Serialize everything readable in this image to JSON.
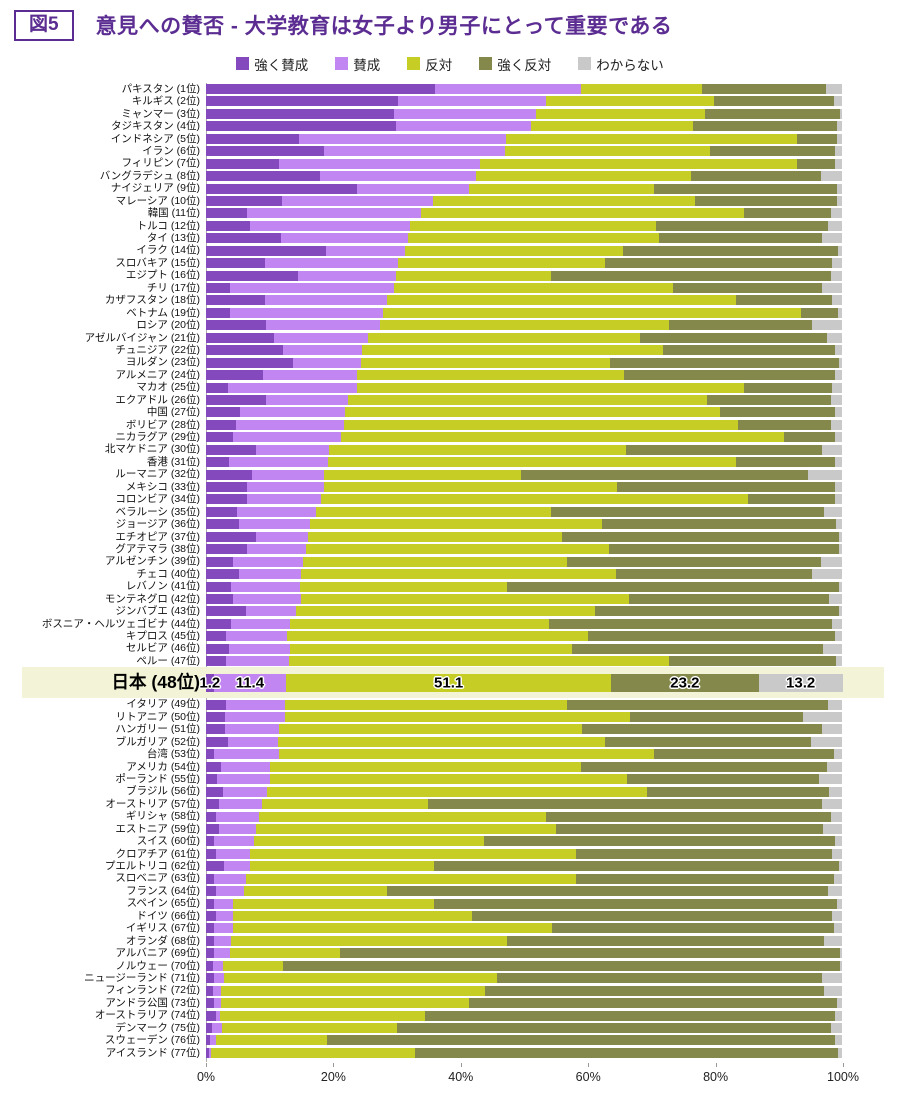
{
  "figure": {
    "label": "図5",
    "title": "意見への賛否 - 大学教育は女子より男子にとって重要である"
  },
  "legend": [
    {
      "key": "strongly-agree",
      "label": "強く賛成",
      "color": "#8549BE"
    },
    {
      "key": "agree",
      "label": "賛成",
      "color": "#C286F3"
    },
    {
      "key": "oppose",
      "label": "反対",
      "color": "#C6CE25"
    },
    {
      "key": "strongly-oppose",
      "label": "強く反対",
      "color": "#84884B"
    },
    {
      "key": "dont-know",
      "label": "わからない",
      "color": "#C9C9C9"
    }
  ],
  "chart_data": {
    "type": "bar",
    "stacked": true,
    "orientation": "horizontal",
    "title": "意見への賛否 - 大学教育は女子より男子にとって重要である",
    "series_names": [
      "強く賛成",
      "賛成",
      "反対",
      "強く反対",
      "わからない"
    ],
    "series_keys": [
      "strongly-agree",
      "agree",
      "oppose",
      "strongly-oppose",
      "dont-know"
    ],
    "colors": [
      "#8549BE",
      "#C286F3",
      "#C6CE25",
      "#84884B",
      "#C9C9C9"
    ],
    "x_ticks": [
      "0%",
      "20%",
      "40%",
      "60%",
      "80%",
      "100%"
    ],
    "x_range": [
      0,
      100
    ],
    "unit": "%",
    "highlighted_row": "日本 (48位)",
    "rows": [
      {
        "label": "パキスタン (1位)",
        "values": [
          36.0,
          23.0,
          19.0,
          19.5,
          2.5
        ]
      },
      {
        "label": "キルギス (2位)",
        "values": [
          30.2,
          23.2,
          26.5,
          18.8,
          1.3
        ]
      },
      {
        "label": "ミャンマー (3位)",
        "values": [
          29.5,
          22.4,
          26.6,
          21.2,
          0.3
        ]
      },
      {
        "label": "タジキスタン (4位)",
        "values": [
          29.8,
          21.3,
          25.4,
          22.7,
          0.8
        ]
      },
      {
        "label": "インドネシア (5位)",
        "values": [
          14.6,
          32.6,
          45.7,
          6.3,
          0.8
        ]
      },
      {
        "label": "イラン (6位)",
        "values": [
          18.5,
          28.5,
          32.3,
          19.6,
          1.1
        ]
      },
      {
        "label": "フィリピン (7位)",
        "values": [
          11.4,
          31.7,
          49.8,
          6.0,
          1.1
        ]
      },
      {
        "label": "バングラデシュ (8位)",
        "values": [
          18.0,
          24.5,
          33.7,
          20.5,
          3.3
        ]
      },
      {
        "label": "ナイジェリア (9位)",
        "values": [
          23.7,
          17.7,
          29.1,
          28.7,
          0.8
        ]
      },
      {
        "label": "マレーシア (10位)",
        "values": [
          11.9,
          23.8,
          41.2,
          22.3,
          0.8
        ]
      },
      {
        "label": "韓国 (11位)",
        "values": [
          6.5,
          27.3,
          50.8,
          13.6,
          1.8
        ]
      },
      {
        "label": "トルコ (12位)",
        "values": [
          6.9,
          25.1,
          38.7,
          27.1,
          2.2
        ]
      },
      {
        "label": "タイ (13位)",
        "values": [
          11.8,
          20.0,
          39.5,
          25.6,
          3.1
        ]
      },
      {
        "label": "イラク (14位)",
        "values": [
          18.8,
          12.5,
          34.2,
          33.9,
          0.6
        ]
      },
      {
        "label": "スロバキア (15位)",
        "values": [
          9.2,
          21.0,
          32.6,
          35.7,
          1.5
        ]
      },
      {
        "label": "エジプト (16位)",
        "values": [
          14.5,
          15.3,
          24.5,
          43.9,
          1.8
        ]
      },
      {
        "label": "チリ (17位)",
        "values": [
          3.8,
          25.7,
          43.9,
          23.5,
          3.1
        ]
      },
      {
        "label": "カザフスタン (18位)",
        "values": [
          9.2,
          19.2,
          54.9,
          15.2,
          1.5
        ]
      },
      {
        "label": "ベトナム (19位)",
        "values": [
          3.8,
          24.0,
          65.8,
          5.8,
          0.6
        ]
      },
      {
        "label": "ロシア (20位)",
        "values": [
          9.4,
          17.9,
          45.5,
          22.5,
          4.7
        ]
      },
      {
        "label": "アゼルバイジャン (21位)",
        "values": [
          10.7,
          14.8,
          42.8,
          29.3,
          2.4
        ]
      },
      {
        "label": "チュニジア (22位)",
        "values": [
          12.1,
          12.5,
          47.2,
          27.1,
          1.1
        ]
      },
      {
        "label": "ヨルダン (23位)",
        "values": [
          13.7,
          10.7,
          39.2,
          36.0,
          0.4
        ]
      },
      {
        "label": "アルメニア (24位)",
        "values": [
          9.0,
          14.7,
          42.1,
          33.1,
          1.1
        ]
      },
      {
        "label": "マカオ (25位)",
        "values": [
          3.4,
          20.3,
          60.9,
          13.9,
          1.5
        ]
      },
      {
        "label": "エクアドル (26位)",
        "values": [
          9.4,
          13.0,
          56.4,
          19.4,
          1.8
        ]
      },
      {
        "label": "中国 (27位)",
        "values": [
          5.4,
          16.4,
          59.0,
          18.1,
          1.1
        ]
      },
      {
        "label": "ボリビア (28位)",
        "values": [
          4.7,
          17.0,
          62.0,
          14.6,
          1.7
        ]
      },
      {
        "label": "ニカラグア (29位)",
        "values": [
          4.3,
          16.9,
          69.7,
          8.0,
          1.1
        ]
      },
      {
        "label": "北マケドニア (30位)",
        "values": [
          7.9,
          11.5,
          46.7,
          30.8,
          3.1
        ]
      },
      {
        "label": "香港 (31位)",
        "values": [
          3.6,
          15.6,
          64.1,
          15.6,
          1.1
        ]
      },
      {
        "label": "ルーマニア (32位)",
        "values": [
          7.3,
          11.3,
          30.9,
          45.2,
          5.3
        ]
      },
      {
        "label": "メキシコ (33位)",
        "values": [
          6.5,
          12.1,
          46.0,
          34.3,
          1.1
        ]
      },
      {
        "label": "コロンビア (34位)",
        "values": [
          6.5,
          11.6,
          67.1,
          13.7,
          1.1
        ]
      },
      {
        "label": "ベラルーシ (35位)",
        "values": [
          4.9,
          12.4,
          36.9,
          42.9,
          2.9
        ]
      },
      {
        "label": "ジョージア (36位)",
        "values": [
          5.2,
          11.2,
          45.8,
          36.9,
          0.9
        ]
      },
      {
        "label": "エチオピア (37位)",
        "values": [
          7.8,
          8.3,
          39.9,
          43.6,
          0.4
        ]
      },
      {
        "label": "グアテマラ (38位)",
        "values": [
          6.5,
          9.2,
          47.7,
          36.2,
          0.4
        ]
      },
      {
        "label": "アルゼンチン (39位)",
        "values": [
          4.2,
          11.0,
          41.6,
          39.9,
          3.3
        ]
      },
      {
        "label": "チェコ (40位)",
        "values": [
          5.2,
          9.8,
          49.5,
          30.8,
          4.7
        ]
      },
      {
        "label": "レバノン (41位)",
        "values": [
          4.0,
          10.8,
          32.5,
          52.3,
          0.4
        ]
      },
      {
        "label": "モンテネグロ (42位)",
        "values": [
          4.2,
          10.8,
          51.5,
          31.5,
          2.0
        ]
      },
      {
        "label": "ジンバブエ (43位)",
        "values": [
          6.3,
          7.8,
          47.0,
          38.5,
          0.4
        ]
      },
      {
        "label": "ボスニア・ヘルツェゴビナ (44位)",
        "values": [
          4.0,
          9.2,
          40.8,
          44.5,
          1.5
        ]
      },
      {
        "label": "キプロス (45位)",
        "values": [
          3.1,
          9.7,
          47.2,
          38.9,
          1.1
        ]
      },
      {
        "label": "セルビア (46位)",
        "values": [
          3.6,
          9.6,
          44.4,
          39.4,
          3.0
        ]
      },
      {
        "label": "ペルー (47位)",
        "values": [
          3.1,
          9.9,
          59.8,
          26.3,
          0.9
        ]
      },
      {
        "label": "日本 (48位)",
        "values": [
          1.2,
          11.4,
          51.1,
          23.2,
          13.2
        ],
        "highlight": true,
        "show_values": true
      },
      {
        "label": "イタリア (49位)",
        "values": [
          3.1,
          9.4,
          44.3,
          41.0,
          2.2
        ]
      },
      {
        "label": "リトアニア (50位)",
        "values": [
          3.0,
          9.5,
          54.2,
          27.1,
          6.2
        ]
      },
      {
        "label": "ハンガリー (51位)",
        "values": [
          3.0,
          8.5,
          47.6,
          37.8,
          3.1
        ]
      },
      {
        "label": "ブルガリア (52位)",
        "values": [
          3.4,
          8.0,
          51.4,
          32.4,
          4.8
        ]
      },
      {
        "label": "台湾 (53位)",
        "values": [
          1.3,
          10.1,
          59.1,
          28.2,
          1.3
        ]
      },
      {
        "label": "アメリカ (54位)",
        "values": [
          2.4,
          7.7,
          48.8,
          38.7,
          2.4
        ]
      },
      {
        "label": "ポーランド (55位)",
        "values": [
          1.8,
          8.2,
          56.2,
          30.2,
          3.6
        ]
      },
      {
        "label": "ブラジル (56位)",
        "values": [
          2.7,
          6.9,
          59.8,
          28.5,
          2.1
        ]
      },
      {
        "label": "オーストリア (57位)",
        "values": [
          2.1,
          6.7,
          26.1,
          62.0,
          3.1
        ]
      },
      {
        "label": "ギリシャ (58位)",
        "values": [
          1.5,
          6.8,
          45.1,
          44.8,
          1.8
        ]
      },
      {
        "label": "エストニア (59位)",
        "values": [
          2.1,
          5.7,
          47.3,
          41.9,
          3.0
        ]
      },
      {
        "label": "スイス (60位)",
        "values": [
          1.2,
          6.4,
          36.1,
          55.2,
          1.1
        ]
      },
      {
        "label": "クロアチア (61位)",
        "values": [
          1.5,
          5.4,
          51.3,
          40.3,
          1.5
        ]
      },
      {
        "label": "プエルトリコ (62位)",
        "values": [
          2.9,
          4.0,
          28.9,
          63.8,
          0.4
        ]
      },
      {
        "label": "スロベニア (63位)",
        "values": [
          1.2,
          5.1,
          51.9,
          40.5,
          1.3
        ]
      },
      {
        "label": "フランス (64位)",
        "values": [
          1.6,
          4.4,
          22.4,
          69.4,
          2.2
        ]
      },
      {
        "label": "スペイン (65位)",
        "values": [
          1.3,
          3.0,
          31.5,
          63.4,
          0.8
        ]
      },
      {
        "label": "ドイツ (66位)",
        "values": [
          1.5,
          2.8,
          37.5,
          56.7,
          1.5
        ]
      },
      {
        "label": "イギリス (67位)",
        "values": [
          1.2,
          3.1,
          50.1,
          44.3,
          1.3
        ]
      },
      {
        "label": "オランダ (68位)",
        "values": [
          1.2,
          2.8,
          43.3,
          49.8,
          2.9
        ]
      },
      {
        "label": "アルバニア (69位)",
        "values": [
          1.3,
          2.5,
          17.2,
          78.7,
          0.3
        ]
      },
      {
        "label": "ノルウェー (70位)",
        "values": [
          1.1,
          1.6,
          9.4,
          87.6,
          0.3
        ]
      },
      {
        "label": "ニュージーランド (71位)",
        "values": [
          1.3,
          1.5,
          42.9,
          51.2,
          3.1
        ]
      },
      {
        "label": "フィンランド (72位)",
        "values": [
          1.1,
          1.3,
          41.5,
          53.2,
          2.9
        ]
      },
      {
        "label": "アンドラ公国 (73位)",
        "values": [
          1.3,
          1.1,
          39.0,
          57.8,
          0.8
        ]
      },
      {
        "label": "オーストラリア (74位)",
        "values": [
          1.5,
          0.7,
          32.3,
          64.4,
          1.1
        ]
      },
      {
        "label": "デンマーク (75位)",
        "values": [
          0.9,
          1.6,
          27.5,
          68.3,
          1.7
        ]
      },
      {
        "label": "スウェーデン (76位)",
        "values": [
          0.6,
          1.0,
          17.4,
          79.9,
          1.1
        ]
      },
      {
        "label": "アイスランド (77位)",
        "values": [
          0.5,
          0.3,
          32.1,
          66.5,
          0.6
        ]
      }
    ]
  }
}
